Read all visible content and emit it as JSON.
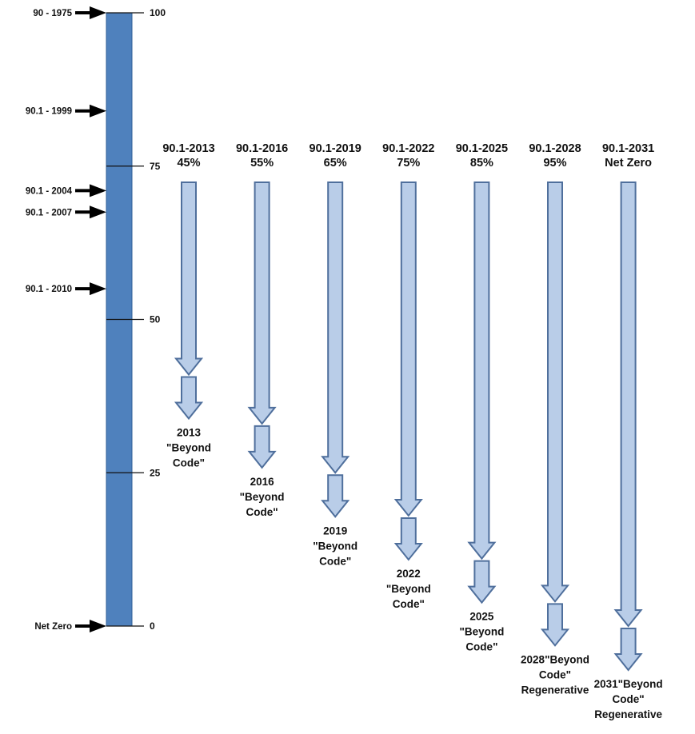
{
  "scale": {
    "min": 0,
    "max": 100,
    "ticks": [
      {
        "value": 100,
        "label": "100"
      },
      {
        "value": 75,
        "label": "75"
      },
      {
        "value": 50,
        "label": "50"
      },
      {
        "value": 25,
        "label": "25"
      },
      {
        "value": 0,
        "label": "0"
      }
    ],
    "bar_color": "#4f81bd",
    "bar_edge_color": "#2f5f97"
  },
  "markers": [
    {
      "label": "90 - 1975",
      "value": 100
    },
    {
      "label": "90.1 - 1999",
      "value": 84
    },
    {
      "label": "90.1 - 2004",
      "value": 71
    },
    {
      "label": "90.1 - 2007",
      "value": 67.5
    },
    {
      "label": "90.1 - 2010",
      "value": 55
    },
    {
      "label": "Net Zero",
      "value": 0
    }
  ],
  "arrow_colors": {
    "fill": "#b9cde8",
    "stroke": "#4f6f9c"
  },
  "standards": [
    {
      "title_lines": [
        "90.1-2013",
        "45%"
      ],
      "value": 41,
      "beyond_lines": [
        "2013",
        "\"Beyond",
        "Code\""
      ]
    },
    {
      "title_lines": [
        "90.1-2016",
        "55%"
      ],
      "value": 33,
      "beyond_lines": [
        "2016",
        "\"Beyond",
        "Code\""
      ]
    },
    {
      "title_lines": [
        "90.1-2019",
        "65%"
      ],
      "value": 25,
      "beyond_lines": [
        "2019",
        "\"Beyond",
        "Code\""
      ]
    },
    {
      "title_lines": [
        "90.1-2022",
        "75%"
      ],
      "value": 18,
      "beyond_lines": [
        "2022",
        "\"Beyond",
        "Code\""
      ]
    },
    {
      "title_lines": [
        "90.1-2025",
        "85%"
      ],
      "value": 11,
      "beyond_lines": [
        "2025",
        "\"Beyond",
        "Code\""
      ]
    },
    {
      "title_lines": [
        "90.1-2028",
        "95%"
      ],
      "value": 4,
      "beyond_lines": [
        "2028\"Beyond",
        "Code\"",
        "Regenerative"
      ]
    },
    {
      "title_lines": [
        "90.1-2031",
        "Net Zero"
      ],
      "value": 0,
      "beyond_lines": [
        "2031\"Beyond",
        "Code\"",
        "Regenerative"
      ]
    }
  ]
}
